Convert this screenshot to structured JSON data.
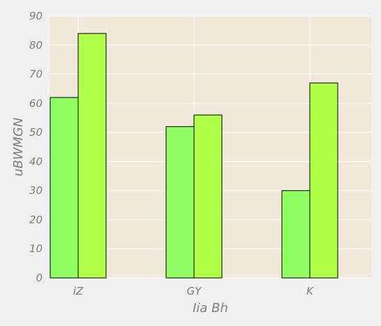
{
  "chart_data": {
    "type": "bar",
    "title": "",
    "xlabel": "Iia  Bh",
    "ylabel": "uBWMGN",
    "categories": [
      "iZ",
      "GY",
      "K"
    ],
    "series": [
      {
        "values": [
          62,
          52,
          30
        ]
      },
      {
        "values": [
          84,
          56,
          67
        ]
      }
    ],
    "ylim": [
      0,
      90
    ],
    "yticks": [
      0,
      10,
      20,
      30,
      40,
      50,
      60,
      70,
      80,
      90
    ],
    "grid": true,
    "legend": "none",
    "colors": {
      "series": [
        "#8fff64",
        "#b0ff48"
      ],
      "plot_background": "#f0e8d8",
      "page_background": "#f0f0f0",
      "grid": "#ffffff",
      "text": "#777f86"
    }
  }
}
